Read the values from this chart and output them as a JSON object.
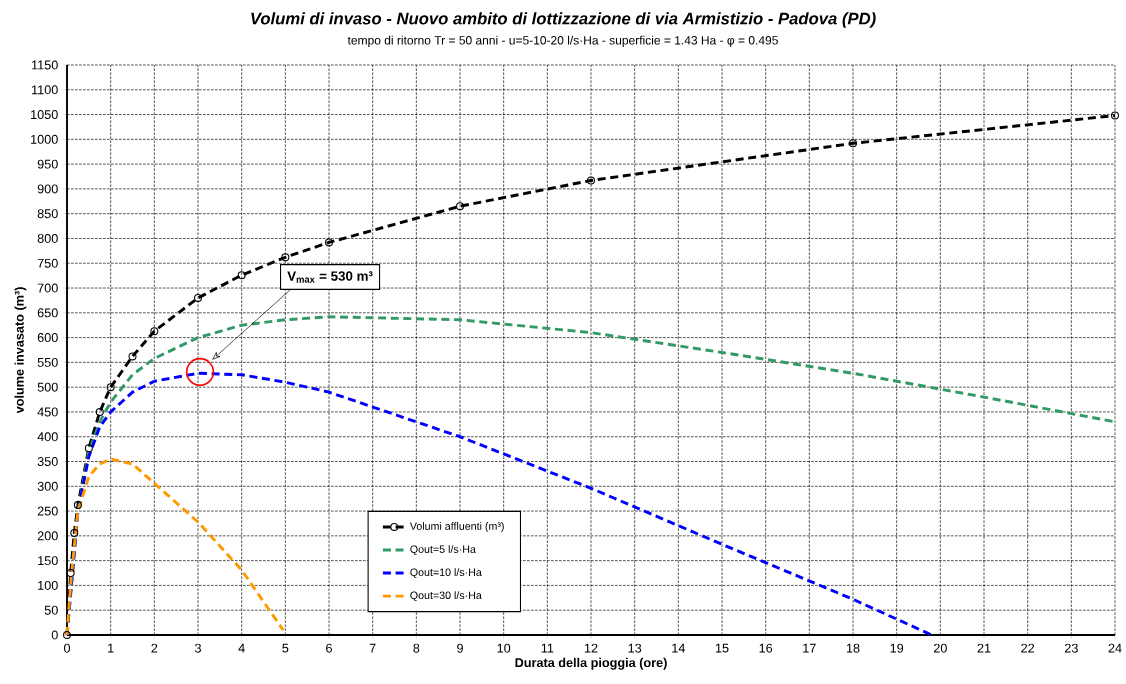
{
  "chart_data": {
    "type": "line",
    "title": "Volumi di invaso - Nuovo ambito di lottizzazione  di via Armistizio - Padova (PD)",
    "subtitle": "tempo di ritorno Tr = 50 anni - u=5-10-20  l/s·Ha - superficie = 1.43 Ha - φ = 0.495",
    "xlabel": "Durata della pioggia (ore)",
    "ylabel": "volume invasato (m³)",
    "xlim": [
      0,
      24
    ],
    "ylim": [
      0,
      1150
    ],
    "xticks": [
      0,
      1,
      2,
      3,
      4,
      5,
      6,
      7,
      8,
      9,
      10,
      11,
      12,
      13,
      14,
      15,
      16,
      17,
      18,
      19,
      20,
      21,
      22,
      23,
      24
    ],
    "yticks": [
      0,
      50,
      100,
      150,
      200,
      250,
      300,
      350,
      400,
      450,
      500,
      550,
      600,
      650,
      700,
      750,
      800,
      850,
      900,
      950,
      1000,
      1050,
      1100,
      1150
    ],
    "grid": true,
    "legend": "bottom",
    "line_style": "dashed",
    "series": [
      {
        "name": "Volumi affluenti (m³)",
        "color": "#000000",
        "marker": "circle",
        "x": [
          0,
          0.083,
          0.167,
          0.25,
          0.5,
          0.75,
          1,
          1.5,
          2,
          3,
          4,
          5,
          6,
          9,
          12,
          18,
          24
        ],
        "values": [
          0,
          125,
          206,
          262,
          377,
          450,
          500,
          562,
          613,
          680,
          726,
          762,
          792,
          865,
          917,
          992,
          1048
        ]
      },
      {
        "name": "Qout=5 l/s·Ha",
        "color": "#339966",
        "marker": "none",
        "x": [
          0,
          0.25,
          0.5,
          0.75,
          1,
          1.5,
          2,
          3,
          4,
          5,
          6,
          9,
          12,
          15,
          18,
          21,
          24
        ],
        "values": [
          0,
          250,
          370,
          430,
          470,
          525,
          558,
          600,
          625,
          636,
          642,
          636,
          610,
          570,
          528,
          480,
          430
        ]
      },
      {
        "name": "Qout=10 l/s·Ha",
        "color": "#0000ff",
        "marker": "none",
        "x": [
          0,
          0.25,
          0.5,
          0.75,
          1,
          1.5,
          2,
          3,
          4,
          5,
          6,
          9,
          12,
          15,
          18,
          19.8
        ],
        "values": [
          0,
          250,
          360,
          420,
          450,
          490,
          512,
          528,
          525,
          510,
          490,
          400,
          296,
          183,
          72,
          0
        ]
      },
      {
        "name": "Qout=30 l/s·Ha",
        "color": "#ff9900",
        "marker": "none",
        "x": [
          0,
          0.1,
          0.25,
          0.5,
          0.75,
          1,
          1.5,
          2,
          3,
          4,
          4.95
        ],
        "values": [
          0,
          120,
          250,
          320,
          345,
          355,
          345,
          306,
          228,
          131,
          10
        ]
      }
    ],
    "annotations": [
      "V$_{max}$ = 530 m³"
    ]
  }
}
